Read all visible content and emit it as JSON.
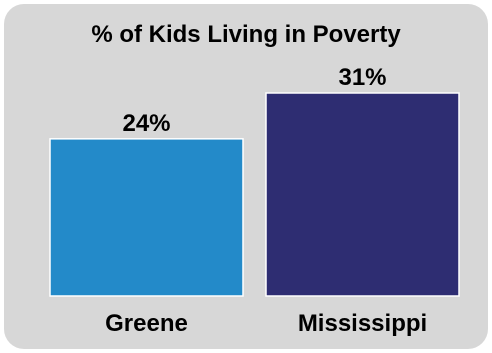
{
  "chart_data": {
    "type": "bar",
    "title": "% of Kids Living in Poverty",
    "categories": [
      "Greene",
      "Mississippi"
    ],
    "values": [
      24,
      31
    ],
    "data_labels": [
      "24%",
      "31%"
    ],
    "unit": "%",
    "ylim": [
      0,
      31
    ],
    "grid": false,
    "legend": "none",
    "colors": [
      "#238ac9",
      "#2e2d72"
    ]
  },
  "card_color": "#d7d7d7"
}
